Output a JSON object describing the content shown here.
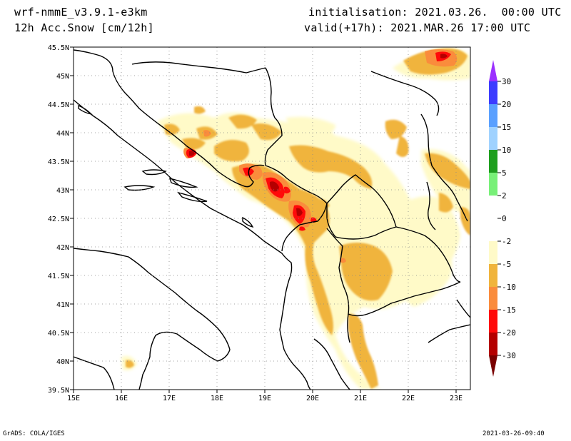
{
  "header": {
    "model": "wrf-nmmE_v3.9.1-e3km",
    "field": "12h Acc.Snow [cm/12h]",
    "init": "initialisation: 2021.03.26.  00:00 UTC",
    "valid": "valid(+17h): 2021.MAR.26 17:00 UTC"
  },
  "footer": {
    "left": "GrADS: COLA/IGES",
    "right": "2021-03-26-09:40"
  },
  "map": {
    "lon_labels": [
      "15E",
      "16E",
      "17E",
      "18E",
      "19E",
      "20E",
      "21E",
      "22E",
      "23E"
    ],
    "lat_labels": [
      "45.5N",
      "45N",
      "44.5N",
      "44N",
      "43.5N",
      "43N",
      "42.5N",
      "42N",
      "41.5N",
      "41N",
      "40.5N",
      "40N",
      "39.5N"
    ],
    "lon_range": [
      15,
      23.3
    ],
    "lat_range": [
      39.5,
      45.5
    ],
    "grid": "dotted"
  },
  "colorbar": {
    "labels": [
      "30",
      "20",
      "15",
      "10",
      "5",
      "2",
      "0",
      "-2",
      "-5",
      "-10",
      "-15",
      "-20",
      "-30"
    ],
    "colors": [
      "#9b30ff",
      "#3c3cff",
      "#5aa0ff",
      "#a0d2ff",
      "#1e9e1e",
      "#78f078",
      "#ffffff",
      "#fffac8",
      "#f0b43c",
      "#fa8c3c",
      "#ff0a0a",
      "#b40000",
      "#7a0000"
    ]
  }
}
